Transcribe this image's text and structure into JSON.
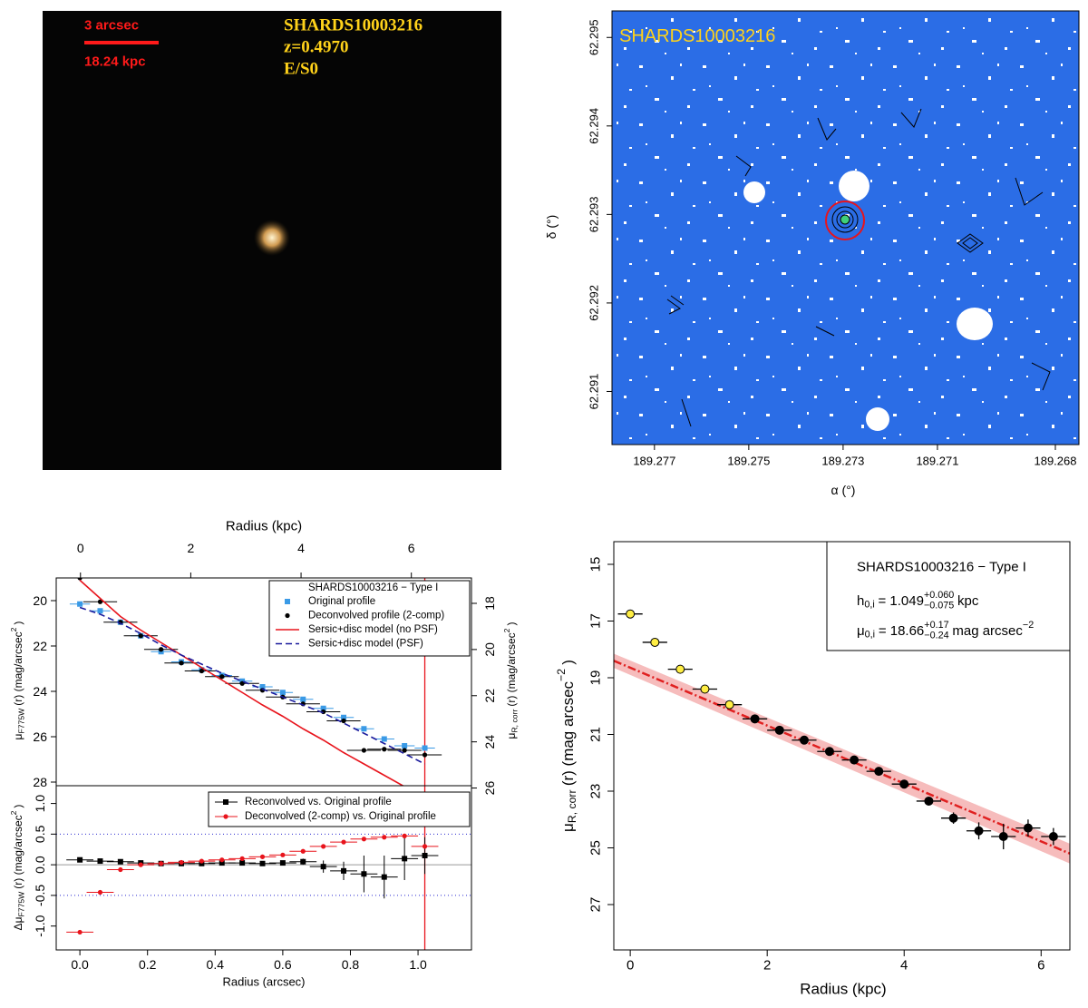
{
  "chart_data": [
    {
      "type": "image",
      "scale_bar": {
        "label": "3 arcsec",
        "length_label": "18.24 kpc",
        "color": "#ff1a1a"
      },
      "annotations": [
        "SHARDS10003216",
        "z=0.4970",
        "E/S0"
      ],
      "annotation_color": "#ffd21a"
    },
    {
      "type": "image",
      "title": "SHARDS10003216",
      "title_color": "#ffd21a",
      "xlabel": "α (°)",
      "ylabel": "δ (°)",
      "xlim": [
        189.2779,
        189.268
      ],
      "xticks": [
        189.277,
        189.275,
        189.273,
        189.271,
        {
          "value": 189.2685,
          "label": "189.268"
        }
      ],
      "ylim": [
        62.2904,
        62.2953
      ],
      "yticks": [
        62.291,
        62.292,
        62.293,
        62.294,
        62.295
      ]
    },
    {
      "type": "line",
      "x2label": "Radius (kpc)",
      "x2lim": [
        -0.44,
        7.09
      ],
      "x2ticks": [
        0,
        2,
        4,
        6
      ],
      "xlim": [
        -0.07,
        1.158
      ],
      "x": [
        0,
        0.06,
        0.12,
        0.18,
        0.24,
        0.3,
        0.36,
        0.42,
        0.48,
        0.54,
        0.6,
        0.66,
        0.72,
        0.78,
        0.84,
        0.9,
        0.96,
        1.02
      ],
      "ylim": [
        28.16,
        19.0
      ],
      "yticks": [
        20,
        22,
        24,
        26,
        28
      ],
      "ylabel": {
        "symbol": "μ",
        "index": "F775W",
        "text": "(r) (mag/arcsec",
        "power": "2",
        "close": ")"
      },
      "y2lim": [
        25.9,
        16.9
      ],
      "y2ticks": [
        18,
        20,
        22,
        24,
        26
      ],
      "y2label": {
        "symbol": "μ",
        "index": "R, corr",
        "text": "(r) (mag/arcsec",
        "power": "2",
        "close": ")"
      },
      "legend_title": "SHARDS10003216  − Type I",
      "series": [
        {
          "name": "Original profile",
          "color": "#3a9ae6",
          "marker": "square",
          "xerr": 0.03,
          "values": [
            20.15,
            20.45,
            20.95,
            21.55,
            22.25,
            22.7,
            23.05,
            23.3,
            23.55,
            23.8,
            24.05,
            24.35,
            24.75,
            25.15,
            25.65,
            26.1,
            26.4,
            26.5
          ]
        },
        {
          "name": "Deconvolved profile (2-comp)",
          "color": "#000000",
          "marker": "circle",
          "xerr": 0.05,
          "values": [
            19.0,
            20.05,
            20.95,
            21.55,
            22.15,
            22.75,
            23.1,
            23.35,
            23.65,
            23.95,
            24.25,
            24.55,
            24.9,
            25.3,
            26.6,
            26.55,
            26.6,
            26.8
          ]
        },
        {
          "name": "Sersic+disc model (no PSF)",
          "color": "#e8141c",
          "marker": "line",
          "dash": false,
          "values": [
            19.1,
            19.9,
            20.7,
            21.3,
            21.85,
            22.4,
            22.95,
            23.5,
            24.05,
            24.6,
            25.1,
            25.65,
            26.15,
            26.7,
            27.2,
            27.7,
            28.2,
            28.7
          ]
        },
        {
          "name": "Sersic+disc model (PSF)",
          "color": "#1a1a9c",
          "marker": "line",
          "dash": true,
          "values": [
            20.3,
            20.6,
            21.0,
            21.45,
            21.95,
            22.4,
            22.8,
            23.2,
            23.55,
            23.9,
            24.25,
            24.6,
            24.95,
            25.4,
            25.85,
            26.3,
            26.75,
            27.2
          ]
        }
      ],
      "vline": 1.02,
      "vline_color": "#e8141c"
    },
    {
      "type": "line",
      "xlabel": "Radius (arcsec)",
      "xlim": [
        -0.07,
        1.158
      ],
      "xticks": [
        {
          "value": 0,
          "label": "0.0"
        },
        0.2,
        0.4,
        0.6,
        0.8,
        {
          "value": 1,
          "label": "1.0"
        }
      ],
      "x": [
        0,
        0.06,
        0.12,
        0.18,
        0.24,
        0.3,
        0.36,
        0.42,
        0.48,
        0.54,
        0.6,
        0.66,
        0.72,
        0.78,
        0.84,
        0.9,
        0.96,
        1.02
      ],
      "ylim": [
        -1.39,
        1.29
      ],
      "yticks": [
        {
          "value": 1,
          "label": "1.0"
        },
        0.5,
        {
          "value": 0,
          "label": "0.0"
        },
        -0.5,
        {
          "value": -1,
          "label": "-1.0"
        }
      ],
      "ylabel": {
        "symbol": "Δμ",
        "index": "F775W",
        "text": "(r) (mag/arcsec",
        "power": "2",
        "close": ")"
      },
      "ref_lines": [
        0.5,
        -0.5
      ],
      "ref_color": "#2a2ad0",
      "zero_line": 0,
      "series": [
        {
          "name": "Reconvolved vs. Original profile",
          "color": "#000000",
          "marker": "square",
          "xerr": 0.04,
          "values": [
            0.08,
            0.06,
            0.05,
            0.03,
            0.02,
            0.02,
            0.02,
            0.03,
            0.03,
            0.02,
            0.03,
            0.05,
            -0.03,
            -0.1,
            -0.15,
            -0.2,
            0.1,
            0.15
          ],
          "yerr": [
            0.02,
            0.02,
            0.02,
            0.02,
            0.02,
            0.02,
            0.02,
            0.02,
            0.02,
            0.02,
            0.03,
            0.05,
            0.1,
            0.15,
            0.3,
            0.35,
            0.35,
            0.3
          ]
        },
        {
          "name": "Deconvolved (2-comp) vs. Original profile",
          "color": "#e8141c",
          "marker": "circle",
          "xerr": 0.04,
          "values": [
            -1.1,
            -0.45,
            -0.08,
            0.0,
            0.02,
            0.04,
            0.06,
            0.08,
            0.1,
            0.13,
            0.16,
            0.22,
            0.3,
            0.37,
            0.42,
            0.45,
            0.47,
            0.3
          ]
        }
      ],
      "vline": 1.02,
      "vline_color": "#e8141c"
    },
    {
      "type": "scatter",
      "xlabel": "Radius (kpc)",
      "xlim": [
        -0.24,
        6.42
      ],
      "xticks": [
        0,
        2,
        4,
        6
      ],
      "ylim": [
        28.6,
        14.2
      ],
      "yticks": [
        15,
        17,
        19,
        21,
        23,
        25,
        27
      ],
      "ylabel": {
        "symbol": "μ",
        "index": "R, corr",
        "text": "(r) (mag arcsec",
        "power": "−2",
        "close": ")"
      },
      "series": [
        {
          "color": "#ffee44",
          "xerr": 0.18,
          "x": [
            0,
            0.36,
            0.73,
            1.09,
            1.45
          ],
          "values": [
            16.75,
            17.75,
            18.7,
            19.4,
            19.95
          ],
          "yerr": [
            0.05,
            0.05,
            0.05,
            0.05,
            0.05
          ]
        },
        {
          "color": "#000000",
          "xerr": 0.18,
          "x": [
            1.82,
            2.18,
            2.54,
            2.91,
            3.27,
            3.63,
            4.0,
            4.36,
            4.72,
            5.09,
            5.45,
            5.81,
            6.18
          ],
          "values": [
            20.45,
            20.85,
            21.2,
            21.6,
            21.9,
            22.3,
            22.75,
            23.35,
            23.95,
            24.4,
            24.6,
            24.3,
            24.6
          ],
          "yerr": [
            0.08,
            0.08,
            0.08,
            0.08,
            0.08,
            0.1,
            0.1,
            0.12,
            0.2,
            0.3,
            0.45,
            0.3,
            0.3
          ]
        }
      ],
      "fit": {
        "color": "#e02020",
        "x": [
          -0.24,
          6.42
        ],
        "values": [
          18.4,
          25.2
        ],
        "band_low": [
          18.15,
          24.85
        ],
        "band_high": [
          18.65,
          25.55
        ]
      },
      "legend": {
        "title": "SHARDS10003216  − Type I",
        "h": {
          "symbol": "h",
          "index": "0,i",
          "eq": "= 1.049",
          "plus": "+0.060",
          "minus": "−0.075",
          "unit": "kpc"
        },
        "mu": {
          "symbol": "μ",
          "index": "0,i",
          "eq": "= 18.66",
          "plus": "+0.17",
          "minus": "−0.24",
          "unit": "mag arcsec",
          "unit_sup": "−2"
        }
      }
    }
  ]
}
